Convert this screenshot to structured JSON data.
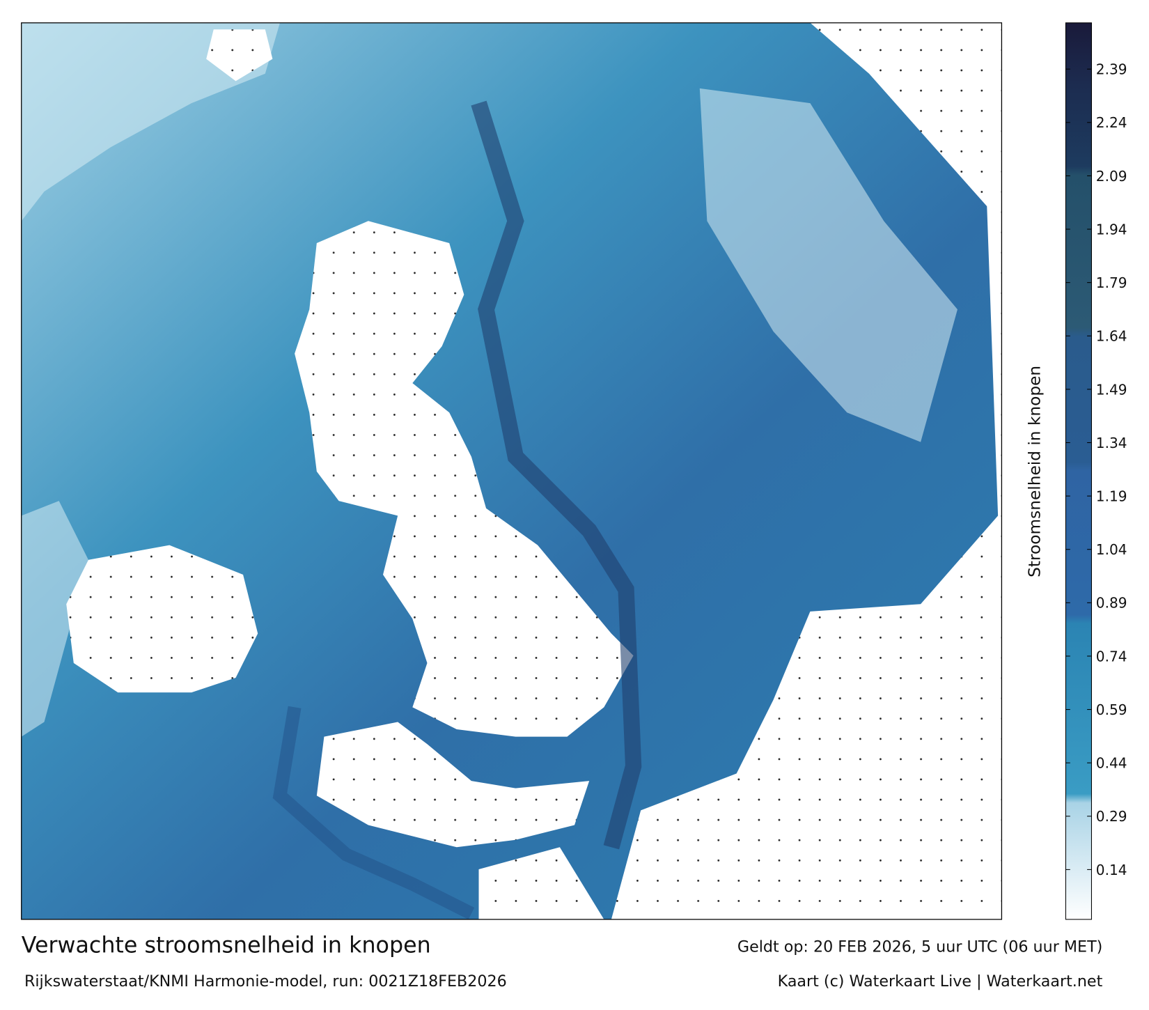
{
  "footer": {
    "title": "Verwachte stroomsnelheid in knopen",
    "source": "Rijkswaterstaat/KNMI Harmonie-model, run: 0021Z18FEB2026",
    "valid": "Geldt op: 20 FEB 2026, 5 uur UTC (06 uur MET)",
    "credit": "Kaart (c) Waterkaart Live | Waterkaart.net"
  },
  "colorbar": {
    "label": "Stroomsnelheid in knopen",
    "lim": [
      0,
      2.52
    ],
    "ticks": [
      0.14,
      0.29,
      0.44,
      0.59,
      0.74,
      0.89,
      1.04,
      1.19,
      1.34,
      1.49,
      1.64,
      1.79,
      1.94,
      2.09,
      2.24,
      2.39
    ]
  }
}
